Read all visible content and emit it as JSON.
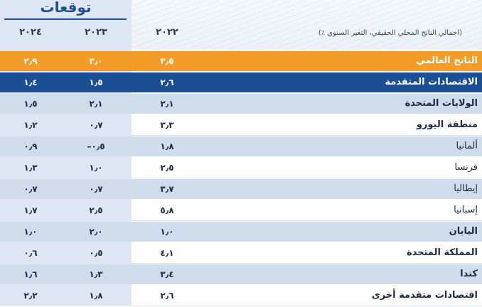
{
  "forecast_label": "توقعات",
  "note": "(اجمالي الناتج المحلي الحقيقي، التغير السنوي ٪)",
  "years": {
    "y2022": "٢٠٢٢",
    "y2023": "٢٠٢٣",
    "y2024": "٢٠٢٤"
  },
  "rows": [
    {
      "label": "الناتج العالمي",
      "v2022": "٣٫٥",
      "v2023": "٣٫٠",
      "v2024": "٢٫٩"
    },
    {
      "label": "الاقتصادات المتقدمة",
      "v2022": "٢٫٦",
      "v2023": "١٫٥",
      "v2024": "١٫٤"
    },
    {
      "label": "الولايات المتحدة",
      "v2022": "٢٫١",
      "v2023": "٢٫١",
      "v2024": "١٫٥"
    },
    {
      "label": "منطقة اليورو",
      "v2022": "٣٫٣",
      "v2023": "٠٫٧",
      "v2024": "١٫٢"
    },
    {
      "label": "ألمانيا",
      "v2022": "١٫٨",
      "v2023": "–٠٫٥",
      "v2024": "٠٫٩"
    },
    {
      "label": "فرنسا",
      "v2022": "٢٫٥",
      "v2023": "١٫٠",
      "v2024": "١٫٣"
    },
    {
      "label": "إيطاليا",
      "v2022": "٣٫٧",
      "v2023": "٠٫٧",
      "v2024": "٠٫٧"
    },
    {
      "label": "إسبانيا",
      "v2022": "٥٫٨",
      "v2023": "٢٫٥",
      "v2024": "١٫٧"
    },
    {
      "label": "اليابان",
      "v2022": "١٫٠",
      "v2023": "٢٫٠",
      "v2024": "١٫٠"
    },
    {
      "label": "المملكة المتحدة",
      "v2022": "٤٫١",
      "v2023": "٠٫٥",
      "v2024": "٠٫٦"
    },
    {
      "label": "كندا",
      "v2022": "٣٫٤",
      "v2023": "١٫٣",
      "v2024": "١٫٦"
    },
    {
      "label": "اقتصادات متقدمة أخرى",
      "v2022": "٢٫٦",
      "v2023": "١٫٨",
      "v2024": "٢٫٢"
    }
  ],
  "colors": {
    "orange": "#f39c28",
    "navy": "#1b4f95",
    "light_blue": "#cfdcec",
    "band": "#dde6f2",
    "title": "#1d4f91"
  }
}
